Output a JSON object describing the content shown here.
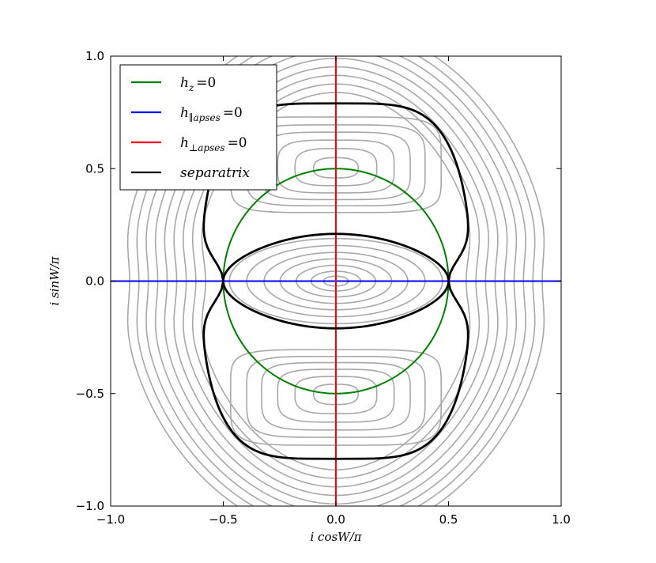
{
  "chart_data": {
    "type": "line",
    "xlabel": "i cosW/π",
    "ylabel": "i sinW/π",
    "xlim": [
      -1.0,
      1.0
    ],
    "ylim": [
      -1.0,
      1.0
    ],
    "xticks": [
      "−1.0",
      "−0.5",
      "0.0",
      "0.5",
      "1.0"
    ],
    "yticks": [
      "−1.0",
      "−0.5",
      "0.0",
      "0.5",
      "1.0"
    ],
    "grid": false,
    "legend_position": "top-left",
    "series": [
      {
        "name": "h_z =0",
        "color": "#008000",
        "kind": "circle",
        "center": [
          0,
          0
        ],
        "radius": 0.5
      },
      {
        "name": "h_∥apses =0",
        "color": "#0000ff",
        "kind": "hline",
        "y": 0.0
      },
      {
        "name": "h_⊥apses =0",
        "color": "#ff0000",
        "kind": "vline",
        "x": 0.0
      },
      {
        "name": "separatrix",
        "color": "#000000",
        "kind": "separatrix",
        "saddles": [
          [
            -0.5,
            0.0
          ],
          [
            0.5,
            0.0
          ]
        ],
        "outer_top": 0.79,
        "outer_bottom": -0.79,
        "outer_xmax": 0.6,
        "inner_top": 0.21,
        "inner_bottom": -0.21
      }
    ],
    "contours": {
      "color": "#a8a8a8",
      "outer_half_widths": [
        0.63,
        0.67,
        0.71,
        0.75,
        0.79,
        0.83,
        0.87,
        0.91,
        0.95
      ],
      "lobe_centers": [
        [
          0.0,
          0.5
        ],
        [
          0.0,
          -0.5
        ]
      ],
      "lobe_levels": [
        0.18,
        0.33,
        0.47,
        0.6,
        0.72,
        0.85
      ],
      "center_levels": [
        0.1,
        0.2,
        0.32,
        0.45,
        0.58,
        0.72,
        0.86
      ]
    }
  },
  "legend": {
    "entries": [
      {
        "main": "h",
        "sub": "z",
        "eq": "=0",
        "color": "#008000"
      },
      {
        "main": "h",
        "sub": "∥apses",
        "eq": "=0",
        "color": "#0000ff"
      },
      {
        "main": "h",
        "sub": "⊥apses",
        "eq": "=0",
        "color": "#ff0000"
      },
      {
        "main": "separatrix",
        "sub": "",
        "eq": "",
        "color": "#000000"
      }
    ]
  }
}
